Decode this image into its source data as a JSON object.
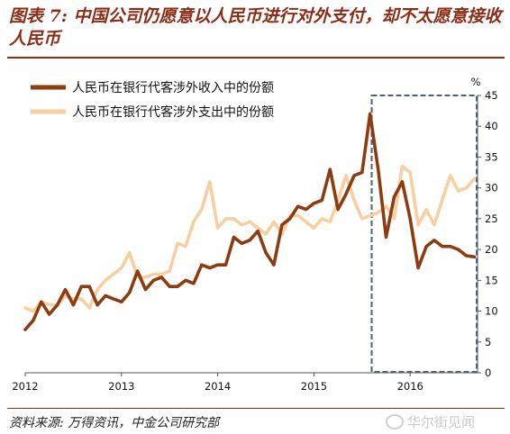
{
  "header": {
    "title": "图表 7: 中国公司仍愿意以人民币进行对外支付，却不太愿意接收人民币"
  },
  "footer": {
    "source": "资料来源: 万得资讯，中金公司研究部",
    "watermark": "华尔街见闻"
  },
  "chart_data": {
    "type": "line",
    "unit_label": "%",
    "xlim": [
      2012,
      2016.7
    ],
    "ylim": [
      0,
      45
    ],
    "x_ticks": [
      "2012",
      "2013",
      "2014",
      "2015",
      "2016"
    ],
    "y_ticks": [
      "0",
      "5",
      "10",
      "15",
      "20",
      "25",
      "30",
      "35",
      "40",
      "45"
    ],
    "highlight_box": {
      "x_range": [
        2015.6,
        2016.7
      ],
      "y_range": [
        0,
        45
      ],
      "color": "#4b6178"
    },
    "series": [
      {
        "name": "人民币在银行代客涉外收入中的份额",
        "color": "#8b3d12",
        "x": [
          2012.0,
          2012.083,
          2012.167,
          2012.25,
          2012.333,
          2012.417,
          2012.5,
          2012.583,
          2012.667,
          2012.75,
          2012.833,
          2012.917,
          2013.0,
          2013.083,
          2013.167,
          2013.25,
          2013.333,
          2013.417,
          2013.5,
          2013.583,
          2013.667,
          2013.75,
          2013.833,
          2013.917,
          2014.0,
          2014.083,
          2014.167,
          2014.25,
          2014.333,
          2014.417,
          2014.5,
          2014.583,
          2014.667,
          2014.75,
          2014.833,
          2014.917,
          2015.0,
          2015.083,
          2015.167,
          2015.25,
          2015.333,
          2015.417,
          2015.5,
          2015.583,
          2015.667,
          2015.75,
          2015.833,
          2015.917,
          2016.0,
          2016.083,
          2016.167,
          2016.25,
          2016.333,
          2016.417,
          2016.5,
          2016.583,
          2016.667
        ],
        "values": [
          7,
          8.5,
          11.5,
          9.5,
          11,
          13.5,
          11,
          14,
          14,
          11,
          12.5,
          12,
          11.5,
          13,
          16.5,
          13.5,
          15,
          15.5,
          14,
          14,
          15,
          14.5,
          17.5,
          17,
          17.5,
          17.5,
          22,
          21,
          21.5,
          23,
          19.5,
          17.5,
          24,
          25,
          27,
          26.5,
          27.5,
          28,
          33,
          26.5,
          29,
          32,
          32.5,
          42,
          33,
          22,
          28.5,
          31,
          25,
          17,
          20.5,
          21.5,
          20.5,
          20.5,
          20,
          19,
          18.8
        ]
      },
      {
        "name": "人民币在银行代客涉外支出中的份额",
        "color": "#f7cfa0",
        "x": [
          2012.0,
          2012.083,
          2012.167,
          2012.25,
          2012.333,
          2012.417,
          2012.5,
          2012.583,
          2012.667,
          2012.75,
          2012.833,
          2012.917,
          2013.0,
          2013.083,
          2013.167,
          2013.25,
          2013.333,
          2013.417,
          2013.5,
          2013.583,
          2013.667,
          2013.75,
          2013.833,
          2013.917,
          2014.0,
          2014.083,
          2014.167,
          2014.25,
          2014.333,
          2014.417,
          2014.5,
          2014.583,
          2014.667,
          2014.75,
          2014.833,
          2014.917,
          2015.0,
          2015.083,
          2015.167,
          2015.25,
          2015.333,
          2015.417,
          2015.5,
          2015.583,
          2015.667,
          2015.75,
          2015.833,
          2015.917,
          2016.0,
          2016.083,
          2016.167,
          2016.25,
          2016.333,
          2016.417,
          2016.5,
          2016.583,
          2016.667
        ],
        "values": [
          10.5,
          10,
          11.5,
          11,
          11,
          12.5,
          12,
          12,
          10.5,
          13.5,
          15,
          16,
          17,
          19.5,
          15.5,
          15.5,
          16,
          16,
          16.5,
          21,
          20.5,
          24.5,
          26.5,
          31,
          23.5,
          25,
          25,
          24,
          24.5,
          23.5,
          22.5,
          24.5,
          22.5,
          25.5,
          25.5,
          24.5,
          23.5,
          25,
          24.5,
          28,
          32,
          28,
          25,
          25.5,
          26,
          27,
          25,
          33.5,
          32.5,
          24,
          26.5,
          24,
          28,
          32,
          29.5,
          30,
          31.5
        ]
      }
    ]
  }
}
